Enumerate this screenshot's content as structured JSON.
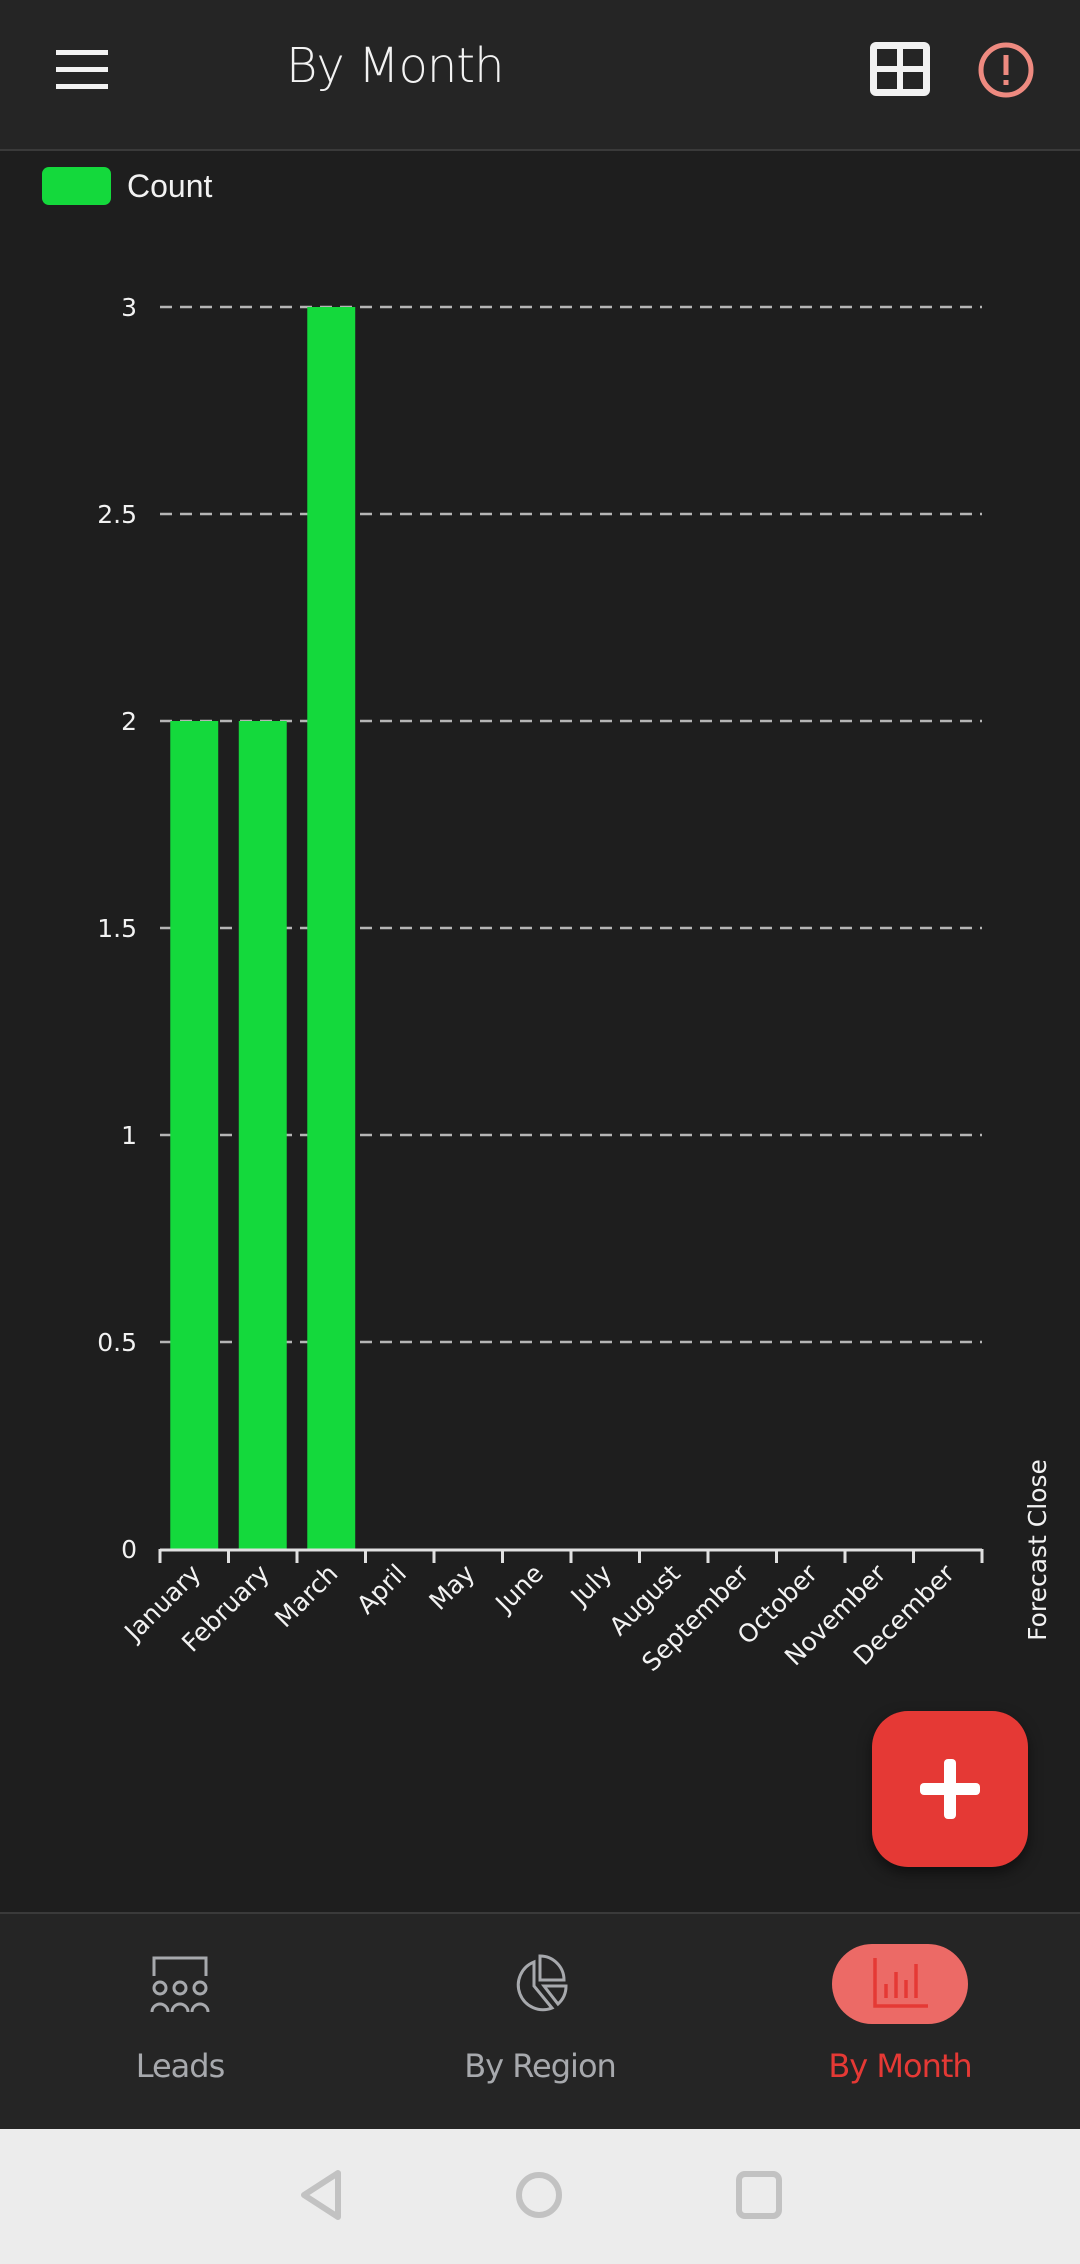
{
  "header": {
    "title": "By Month",
    "menu_icon": "hamburger-icon",
    "grid_icon": "table-grid-icon",
    "alert_icon": "alert-circle-icon",
    "alert_color": "#ee8a80"
  },
  "chart_data": {
    "type": "bar",
    "categories": [
      "January",
      "February",
      "March",
      "April",
      "May",
      "June",
      "July",
      "August",
      "September",
      "October",
      "November",
      "December"
    ],
    "series": [
      {
        "name": "Count",
        "values": [
          2,
          2,
          3,
          0,
          0,
          0,
          0,
          0,
          0,
          0,
          0,
          0
        ],
        "color": "#14d93c"
      }
    ],
    "title": "",
    "xlabel": "Forecast  Close",
    "ylabel": "",
    "ylim": [
      0,
      3
    ],
    "yticks": [
      "0",
      "0.5",
      "1",
      "1.5",
      "2",
      "2.5",
      "3"
    ],
    "grid": "horizontal-dashed",
    "legend": "top-left"
  },
  "fab": {
    "icon": "plus-icon",
    "color": "#e53935"
  },
  "nav": {
    "items": [
      {
        "label": "Leads",
        "icon": "leads-group-icon"
      },
      {
        "label": "By Region",
        "icon": "pie-chart-icon"
      },
      {
        "label": "By Month",
        "icon": "bar-chart-icon",
        "active": true
      }
    ],
    "active_color": "#e53935"
  },
  "system": {
    "back": "back-triangle-icon",
    "home": "home-circle-icon",
    "recents": "recents-square-icon"
  }
}
